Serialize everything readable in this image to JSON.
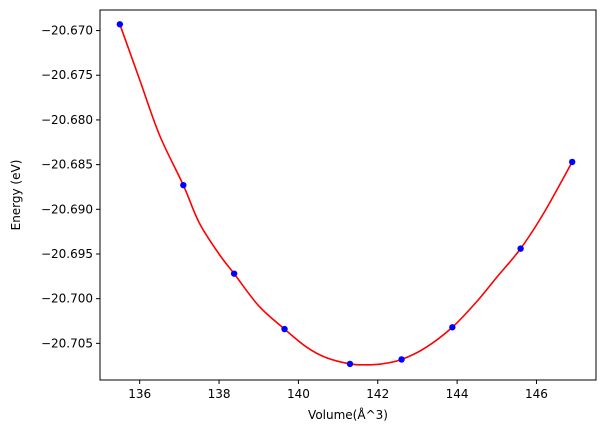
{
  "chart_data": {
    "type": "scatter",
    "title": "",
    "xlabel": "Volume(Å^3)",
    "ylabel": "Energy (eV)",
    "xlim": [
      135.0,
      147.5
    ],
    "ylim": [
      -20.7091,
      -20.6677
    ],
    "xticks": [
      136,
      138,
      140,
      142,
      144,
      146
    ],
    "xtick_labels": [
      "136",
      "138",
      "140",
      "142",
      "144",
      "146"
    ],
    "yticks": [
      -20.67,
      -20.675,
      -20.68,
      -20.685,
      -20.69,
      -20.695,
      -20.7,
      -20.705
    ],
    "ytick_labels": [
      "−20.670",
      "−20.675",
      "−20.680",
      "−20.685",
      "−20.690",
      "−20.695",
      "−20.700",
      "−20.705"
    ],
    "grid": false,
    "series": [
      {
        "kind": "points",
        "color": "#0000ff",
        "x": [
          135.5,
          137.1,
          138.38,
          139.65,
          141.3,
          142.6,
          143.88,
          145.6,
          146.9
        ],
        "y": [
          -20.6693,
          -20.6873,
          -20.6972,
          -20.7034,
          -20.7073,
          -20.7068,
          -20.7032,
          -20.6944,
          -20.6847
        ]
      },
      {
        "kind": "fit-curve",
        "color": "#ff0000",
        "x": [
          135.5,
          136.0,
          136.5,
          137.1,
          137.5,
          138.0,
          138.38,
          139.0,
          139.65,
          140.2,
          140.7,
          141.3,
          141.7,
          142.1,
          142.6,
          143.2,
          143.88,
          144.5,
          145.0,
          145.6,
          146.2,
          146.9
        ],
        "y": [
          -20.6693,
          -20.6755,
          -20.6817,
          -20.6873,
          -20.6915,
          -20.695,
          -20.6972,
          -20.7008,
          -20.7034,
          -20.7054,
          -20.7066,
          -20.7073,
          -20.7074,
          -20.7073,
          -20.7068,
          -20.7055,
          -20.7032,
          -20.7003,
          -20.6976,
          -20.6944,
          -20.6903,
          -20.6847
        ]
      }
    ]
  }
}
